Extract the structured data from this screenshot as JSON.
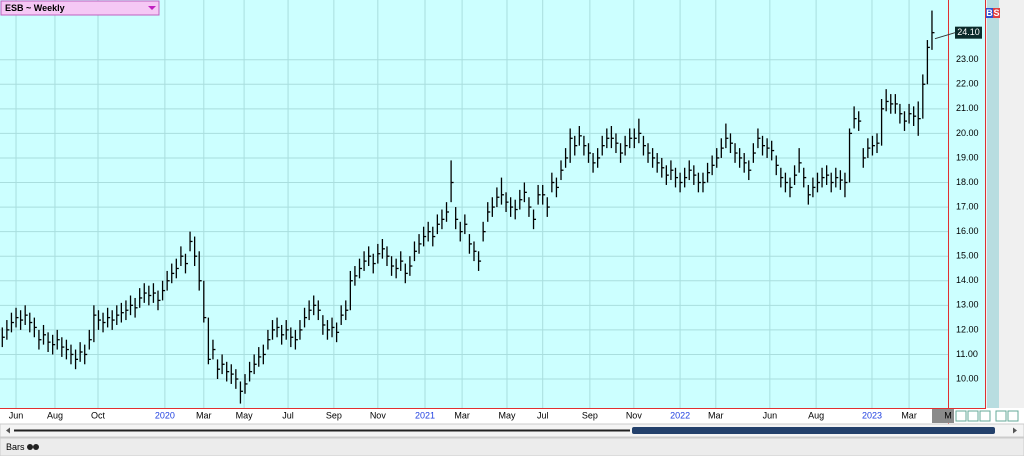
{
  "chart_data": {
    "type": "ohlc",
    "title": "ESB ~ Weekly",
    "color": "#000000",
    "grid": true,
    "xlim": [
      -0.5,
      206.5
    ],
    "xticks": [
      {
        "value": 3,
        "label": "Jun"
      },
      {
        "value": 11.5,
        "label": "Aug"
      },
      {
        "value": 20.9,
        "label": "Oct"
      },
      {
        "value": 35.5,
        "label": "2020"
      },
      {
        "value": 44,
        "label": "Mar"
      },
      {
        "value": 52.8,
        "label": "May"
      },
      {
        "value": 62.4,
        "label": "Jul"
      },
      {
        "value": 72.4,
        "label": "Sep"
      },
      {
        "value": 82,
        "label": "Nov"
      },
      {
        "value": 92.3,
        "label": "2021"
      },
      {
        "value": 100.4,
        "label": "Mar"
      },
      {
        "value": 110.2,
        "label": "May"
      },
      {
        "value": 118,
        "label": "Jul"
      },
      {
        "value": 128.3,
        "label": "Sep"
      },
      {
        "value": 137.9,
        "label": "Nov"
      },
      {
        "value": 148,
        "label": "2022"
      },
      {
        "value": 155.8,
        "label": "Mar"
      },
      {
        "value": 167.6,
        "label": "Jun"
      },
      {
        "value": 177.7,
        "label": "Aug"
      },
      {
        "value": 189.9,
        "label": "2023"
      },
      {
        "value": 198,
        "label": "Mar"
      },
      {
        "value": 206.5,
        "label": "M"
      }
    ],
    "ylim": [
      8.82,
      25.43
    ],
    "yticks": [
      {
        "value": 10,
        "label": "10.00"
      },
      {
        "value": 11,
        "label": "11.00"
      },
      {
        "value": 12,
        "label": "12.00"
      },
      {
        "value": 13,
        "label": "13.00"
      },
      {
        "value": 14,
        "label": "14.00"
      },
      {
        "value": 15,
        "label": "15.00"
      },
      {
        "value": 16,
        "label": "16.00"
      },
      {
        "value": 17,
        "label": "17.00"
      },
      {
        "value": 18,
        "label": "18.00"
      },
      {
        "value": 19,
        "label": "19.00"
      },
      {
        "value": 20,
        "label": "20.00"
      },
      {
        "value": 21,
        "label": "21.00"
      },
      {
        "value": 22,
        "label": "22.00"
      },
      {
        "value": 23,
        "label": "23.00"
      }
    ],
    "last_price": {
      "value": 24.1,
      "label": "24.10"
    },
    "close": [
      11.7,
      12.0,
      12.3,
      12.5,
      12.4,
      12.6,
      12.3,
      12.1,
      11.6,
      11.8,
      11.5,
      11.4,
      11.6,
      11.3,
      11.2,
      11.0,
      10.8,
      11.1,
      11.0,
      11.6,
      12.6,
      12.4,
      12.3,
      12.5,
      12.4,
      12.6,
      12.7,
      12.8,
      13.0,
      12.9,
      13.3,
      13.5,
      13.4,
      13.5,
      13.2,
      13.6,
      14.0,
      14.3,
      14.5,
      15.0,
      14.7,
      15.6,
      15.0,
      14.0,
      12.5,
      10.8,
      11.2,
      10.4,
      10.6,
      10.3,
      10.2,
      10.0,
      9.5,
      9.8,
      10.3,
      10.6,
      10.9,
      11.0,
      11.6,
      12.0,
      12.1,
      11.8,
      12.0,
      11.7,
      11.6,
      12.0,
      12.5,
      12.8,
      13.0,
      12.8,
      12.2,
      12.0,
      12.1,
      11.9,
      12.6,
      12.8,
      14.0,
      14.2,
      14.5,
      14.8,
      15.0,
      14.7,
      15.1,
      15.3,
      15.0,
      14.6,
      14.5,
      14.8,
      14.3,
      14.6,
      15.2,
      15.5,
      15.8,
      16.0,
      15.8,
      16.3,
      16.5,
      16.8,
      18.0,
      16.5,
      16.0,
      16.3,
      15.5,
      15.2,
      14.8,
      16.0,
      16.8,
      17.0,
      17.4,
      17.5,
      17.2,
      17.0,
      16.9,
      17.3,
      17.6,
      17.0,
      16.5,
      17.5,
      17.5,
      17.0,
      18.0,
      17.8,
      18.5,
      19.0,
      19.8,
      19.5,
      19.9,
      19.5,
      19.2,
      18.8,
      19.0,
      19.5,
      19.8,
      19.8,
      19.6,
      19.2,
      19.5,
      19.8,
      19.8,
      20.0,
      19.5,
      19.2,
      19.0,
      18.8,
      18.6,
      18.3,
      18.5,
      18.2,
      18.0,
      18.2,
      18.5,
      18.3,
      18.0,
      18.0,
      18.4,
      18.7,
      19.0,
      19.4,
      19.8,
      19.6,
      19.2,
      19.0,
      18.8,
      18.5,
      19.2,
      19.8,
      19.5,
      19.4,
      19.3,
      18.7,
      18.2,
      18.0,
      17.8,
      18.3,
      18.8,
      18.2,
      17.5,
      17.8,
      18.0,
      18.2,
      18.3,
      18.0,
      18.2,
      18.1,
      18.0,
      20.0,
      20.6,
      20.5,
      19.0,
      19.4,
      19.5,
      19.6,
      21.0,
      21.3,
      21.2,
      21.2,
      20.8,
      20.5,
      20.8,
      20.7,
      20.6,
      22.0,
      23.5,
      24.1
    ],
    "high": [
      12.1,
      12.4,
      12.7,
      12.9,
      12.8,
      13.0,
      12.7,
      12.5,
      12.0,
      12.2,
      11.9,
      11.8,
      12.0,
      11.7,
      11.6,
      11.4,
      11.2,
      11.5,
      11.4,
      12.0,
      13.0,
      12.8,
      12.7,
      12.9,
      12.8,
      13.0,
      13.1,
      13.2,
      13.4,
      13.3,
      13.7,
      13.9,
      13.8,
      13.9,
      13.6,
      14.0,
      14.4,
      14.7,
      14.9,
      15.4,
      15.1,
      16.0,
      15.8,
      15.2,
      14.0,
      12.5,
      11.6,
      10.8,
      11.0,
      10.7,
      10.6,
      10.4,
      9.9,
      10.2,
      10.7,
      11.0,
      11.3,
      11.4,
      12.0,
      12.4,
      12.5,
      12.2,
      12.4,
      12.1,
      12.0,
      12.4,
      12.9,
      13.2,
      13.4,
      13.2,
      12.6,
      12.4,
      12.5,
      12.3,
      13.0,
      13.2,
      14.4,
      14.6,
      14.9,
      15.2,
      15.4,
      15.1,
      15.5,
      15.7,
      15.4,
      15.0,
      14.9,
      15.2,
      14.7,
      15.0,
      15.6,
      15.9,
      16.2,
      16.4,
      16.2,
      16.7,
      16.9,
      17.2,
      18.9,
      17.0,
      16.4,
      16.7,
      15.9,
      15.6,
      15.2,
      16.4,
      17.2,
      17.4,
      17.8,
      18.2,
      17.6,
      17.4,
      17.3,
      17.7,
      18.0,
      17.4,
      16.9,
      17.9,
      17.9,
      17.4,
      18.4,
      18.2,
      18.9,
      19.4,
      20.2,
      19.9,
      20.3,
      19.9,
      19.6,
      19.2,
      19.4,
      19.9,
      20.2,
      20.3,
      20.0,
      19.6,
      19.9,
      20.2,
      20.2,
      20.6,
      19.9,
      19.6,
      19.4,
      19.2,
      19.0,
      18.7,
      18.9,
      18.6,
      18.4,
      18.6,
      18.9,
      18.7,
      18.4,
      18.4,
      18.8,
      19.1,
      19.4,
      19.8,
      20.4,
      20.0,
      19.6,
      19.4,
      19.2,
      18.9,
      19.6,
      20.2,
      19.9,
      19.8,
      19.7,
      19.1,
      18.6,
      18.4,
      18.2,
      18.7,
      19.4,
      18.6,
      17.9,
      18.2,
      18.4,
      18.6,
      18.7,
      18.4,
      18.6,
      18.5,
      18.4,
      20.2,
      21.1,
      20.9,
      19.4,
      19.8,
      19.9,
      20.0,
      21.4,
      21.8,
      21.6,
      21.6,
      21.2,
      20.9,
      21.2,
      21.1,
      21.3,
      22.4,
      23.8,
      25.0
    ],
    "low": [
      11.3,
      11.6,
      11.9,
      12.1,
      12.0,
      12.2,
      11.9,
      11.7,
      11.2,
      11.4,
      11.1,
      11.0,
      11.2,
      10.9,
      10.8,
      10.6,
      10.4,
      10.7,
      10.6,
      11.2,
      11.5,
      12.0,
      11.9,
      12.1,
      12.0,
      12.2,
      12.3,
      12.4,
      12.6,
      12.5,
      12.9,
      13.1,
      13.0,
      13.1,
      12.8,
      13.2,
      13.6,
      13.9,
      14.1,
      14.6,
      14.3,
      15.2,
      14.6,
      13.6,
      12.3,
      10.6,
      10.8,
      10.0,
      10.2,
      9.9,
      9.8,
      9.6,
      9.0,
      9.4,
      9.9,
      10.2,
      10.5,
      10.6,
      11.2,
      11.6,
      11.7,
      11.4,
      11.6,
      11.3,
      11.2,
      11.6,
      12.1,
      12.4,
      12.6,
      12.4,
      11.8,
      11.6,
      11.7,
      11.5,
      12.2,
      12.4,
      12.8,
      13.8,
      14.1,
      14.4,
      14.6,
      14.3,
      14.7,
      14.9,
      14.6,
      14.2,
      14.1,
      14.4,
      13.9,
      14.2,
      14.8,
      15.1,
      15.4,
      15.6,
      15.4,
      15.9,
      16.1,
      16.4,
      17.2,
      16.1,
      15.6,
      15.9,
      15.1,
      14.8,
      14.4,
      15.6,
      16.4,
      16.6,
      17.0,
      17.1,
      16.8,
      16.6,
      16.5,
      16.9,
      17.2,
      16.6,
      16.1,
      17.1,
      17.1,
      16.6,
      17.6,
      17.4,
      18.1,
      18.6,
      18.8,
      19.1,
      19.5,
      19.1,
      18.8,
      18.4,
      18.6,
      19.1,
      19.4,
      19.4,
      19.2,
      18.8,
      19.1,
      19.4,
      19.4,
      19.6,
      19.1,
      18.8,
      18.6,
      18.4,
      18.2,
      17.9,
      18.1,
      17.8,
      17.6,
      17.8,
      18.1,
      17.9,
      17.6,
      17.6,
      18.0,
      18.3,
      18.6,
      19.0,
      19.4,
      19.2,
      18.8,
      18.6,
      18.4,
      18.1,
      18.8,
      19.4,
      19.1,
      19.0,
      18.9,
      18.3,
      17.8,
      17.6,
      17.4,
      17.9,
      18.4,
      17.8,
      17.1,
      17.4,
      17.6,
      17.8,
      17.9,
      17.6,
      17.8,
      17.7,
      17.4,
      18.0,
      20.2,
      20.1,
      18.6,
      19.0,
      19.1,
      19.2,
      19.5,
      20.9,
      20.8,
      20.8,
      20.4,
      20.1,
      20.4,
      20.3,
      19.9,
      20.6,
      22.0,
      23.4
    ]
  },
  "toolbar": {
    "buy": "B",
    "sell": "S",
    "tab": "Bars"
  }
}
